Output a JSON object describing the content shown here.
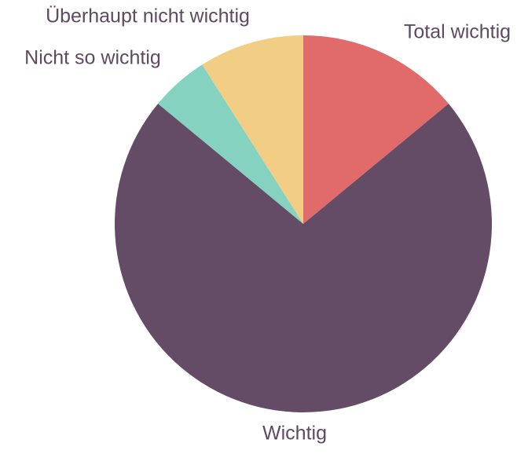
{
  "chart_data": {
    "type": "pie",
    "categories": [
      "Total wichtig",
      "Wichtig",
      "Nicht so wichtig",
      "Überhaupt nicht wichtig"
    ],
    "values": [
      14,
      72,
      5,
      9
    ],
    "colors": [
      "#e06b6a",
      "#644c66",
      "#85d2c0",
      "#f2cd84"
    ]
  }
}
